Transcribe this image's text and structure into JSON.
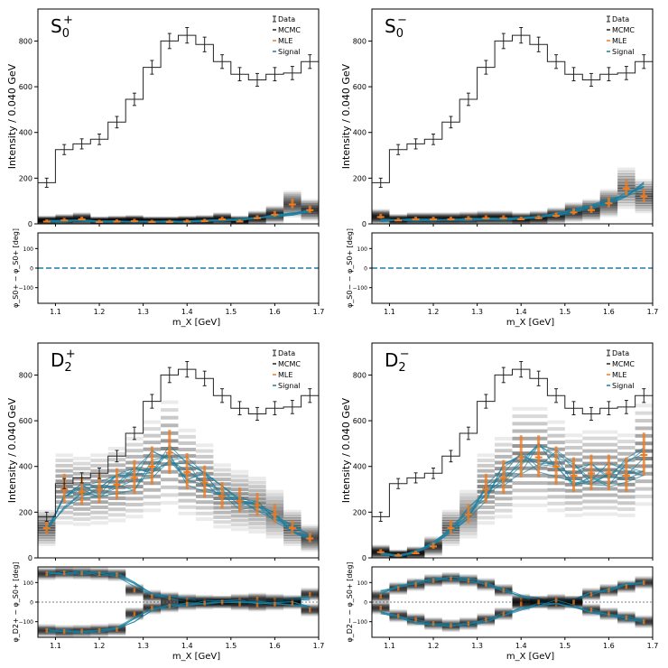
{
  "chart_data": [
    {
      "type": "line",
      "panel": "S0+",
      "title_base": "S",
      "title_sub": "0",
      "title_sup": "+",
      "xlabel": "m_X [GeV]",
      "ylabel": "Intensity / 0.040 GeV",
      "phase_ylabel": "φ_S0+ − φ_S0+ [deg]",
      "xlim": [
        1.06,
        1.7
      ],
      "ylim": [
        0,
        940
      ],
      "phase_ylim": [
        -180,
        180
      ],
      "legend": [
        "Data",
        "MCMC",
        "MLE",
        "Signal"
      ],
      "legend_position": "top-right",
      "x": [
        1.08,
        1.12,
        1.16,
        1.2,
        1.24,
        1.28,
        1.32,
        1.36,
        1.4,
        1.44,
        1.48,
        1.52,
        1.56,
        1.6,
        1.64,
        1.68
      ],
      "data": [
        180,
        325,
        350,
        370,
        445,
        545,
        685,
        800,
        825,
        785,
        710,
        655,
        630,
        655,
        660,
        710
      ],
      "data_err": [
        20,
        22,
        22,
        23,
        25,
        27,
        30,
        33,
        34,
        32,
        30,
        29,
        28,
        29,
        29,
        30
      ],
      "mle": [
        10,
        15,
        20,
        8,
        10,
        12,
        8,
        8,
        10,
        12,
        20,
        10,
        25,
        40,
        85,
        60
      ],
      "signal": [
        12,
        12,
        14,
        10,
        10,
        10,
        9,
        9,
        10,
        12,
        15,
        18,
        25,
        35,
        45,
        55
      ],
      "phase_mle": [
        0,
        0,
        0,
        0,
        0,
        0,
        0,
        0,
        0,
        0,
        0,
        0,
        0,
        0,
        0,
        0
      ],
      "phase_signal": [
        0,
        0,
        0,
        0,
        0,
        0,
        0,
        0,
        0,
        0,
        0,
        0,
        0,
        0,
        0,
        0
      ],
      "phase_mirror": false
    },
    {
      "type": "line",
      "panel": "S0-",
      "title_base": "S",
      "title_sub": "0",
      "title_sup": "−",
      "xlabel": "m_X [GeV]",
      "ylabel": "Intensity / 0.040 GeV",
      "phase_ylabel": "φ_S0− − φ_S0+ [deg]",
      "xlim": [
        1.06,
        1.7
      ],
      "ylim": [
        0,
        940
      ],
      "phase_ylim": [
        -180,
        180
      ],
      "legend": [
        "Data",
        "MCMC",
        "MLE",
        "Signal"
      ],
      "legend_position": "top-right",
      "x": [
        1.08,
        1.12,
        1.16,
        1.2,
        1.24,
        1.28,
        1.32,
        1.36,
        1.4,
        1.44,
        1.48,
        1.52,
        1.56,
        1.6,
        1.64,
        1.68
      ],
      "data": [
        180,
        325,
        350,
        370,
        445,
        545,
        685,
        800,
        825,
        785,
        710,
        655,
        630,
        655,
        660,
        710
      ],
      "data_err": [
        20,
        22,
        22,
        23,
        25,
        27,
        30,
        33,
        34,
        32,
        30,
        29,
        28,
        29,
        29,
        30
      ],
      "mle": [
        30,
        15,
        20,
        20,
        20,
        22,
        25,
        25,
        20,
        25,
        35,
        50,
        60,
        90,
        155,
        120
      ],
      "signal": [
        15,
        15,
        18,
        18,
        18,
        20,
        22,
        22,
        25,
        30,
        40,
        55,
        75,
        100,
        130,
        160
      ],
      "phase_mle": [
        0,
        0,
        0,
        0,
        0,
        0,
        0,
        0,
        0,
        0,
        0,
        0,
        0,
        0,
        0,
        0
      ],
      "phase_signal": [
        0,
        0,
        0,
        0,
        0,
        0,
        0,
        0,
        0,
        0,
        0,
        0,
        0,
        0,
        0,
        0
      ],
      "phase_mirror": false
    },
    {
      "type": "line",
      "panel": "D2+",
      "title_base": "D",
      "title_sub": "2",
      "title_sup": "+",
      "xlabel": "m_X [GeV]",
      "ylabel": "Intensity / 0.040 GeV",
      "phase_ylabel": "φ_D2+ − φ_S0+ [deg]",
      "xlim": [
        1.06,
        1.7
      ],
      "ylim": [
        0,
        940
      ],
      "phase_ylim": [
        -180,
        180
      ],
      "legend": [
        "Data",
        "MCMC",
        "MLE",
        "Signal"
      ],
      "legend_position": "top-right",
      "x": [
        1.08,
        1.12,
        1.16,
        1.2,
        1.24,
        1.28,
        1.32,
        1.36,
        1.4,
        1.44,
        1.48,
        1.52,
        1.56,
        1.6,
        1.64,
        1.68
      ],
      "data": [
        180,
        325,
        350,
        370,
        445,
        545,
        685,
        800,
        825,
        785,
        710,
        655,
        630,
        655,
        660,
        710
      ],
      "data_err": [
        20,
        22,
        22,
        23,
        25,
        27,
        30,
        33,
        34,
        32,
        30,
        29,
        28,
        29,
        29,
        30
      ],
      "mle": [
        130,
        300,
        290,
        300,
        320,
        350,
        400,
        460,
        375,
        330,
        270,
        250,
        230,
        190,
        130,
        85
      ],
      "signal": [
        120,
        250,
        300,
        310,
        320,
        350,
        410,
        430,
        380,
        330,
        280,
        245,
        220,
        180,
        130,
        90
      ],
      "phase_mle": [
        145,
        150,
        148,
        145,
        140,
        60,
        30,
        20,
        10,
        5,
        0,
        10,
        15,
        10,
        5,
        40
      ],
      "phase_signal": [
        150,
        150,
        148,
        145,
        140,
        90,
        40,
        20,
        10,
        5,
        0,
        0,
        0,
        5,
        10,
        20
      ],
      "phase_mirror": true
    },
    {
      "type": "line",
      "panel": "D2-",
      "title_base": "D",
      "title_sub": "2",
      "title_sup": "−",
      "xlabel": "m_X [GeV]",
      "ylabel": "Intensity / 0.040 GeV",
      "phase_ylabel": "φ_D2− − φ_S0+ [deg]",
      "xlim": [
        1.06,
        1.7
      ],
      "ylim": [
        0,
        940
      ],
      "phase_ylim": [
        -180,
        180
      ],
      "legend": [
        "Data",
        "MCMC",
        "MLE",
        "Signal"
      ],
      "legend_position": "top-right",
      "x": [
        1.08,
        1.12,
        1.16,
        1.2,
        1.24,
        1.28,
        1.32,
        1.36,
        1.4,
        1.44,
        1.48,
        1.52,
        1.56,
        1.6,
        1.64,
        1.68
      ],
      "data": [
        180,
        325,
        350,
        370,
        445,
        545,
        685,
        800,
        825,
        785,
        710,
        655,
        630,
        655,
        660,
        710
      ],
      "data_err": [
        20,
        22,
        22,
        23,
        25,
        27,
        30,
        33,
        34,
        32,
        30,
        29,
        28,
        29,
        29,
        30
      ],
      "mle": [
        25,
        10,
        20,
        50,
        130,
        190,
        300,
        350,
        440,
        440,
        400,
        360,
        370,
        370,
        360,
        450
      ],
      "signal": [
        20,
        10,
        25,
        60,
        120,
        200,
        280,
        360,
        420,
        440,
        410,
        370,
        360,
        365,
        380,
        420
      ],
      "phase_mle": [
        30,
        70,
        90,
        110,
        120,
        110,
        90,
        60,
        10,
        0,
        -10,
        0,
        40,
        60,
        80,
        100
      ],
      "phase_signal": [
        50,
        80,
        100,
        115,
        120,
        115,
        95,
        60,
        30,
        10,
        0,
        20,
        45,
        65,
        85,
        100
      ],
      "phase_mirror": true
    }
  ]
}
